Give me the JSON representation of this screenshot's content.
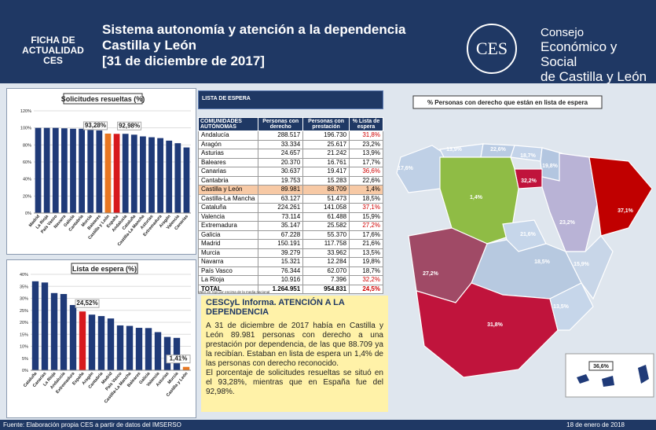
{
  "header": {
    "badge": [
      "FICHA DE",
      "ACTUALIDAD",
      "CES"
    ],
    "title": [
      "Sistema autonomía y atención a la dependencia",
      "Castilla y León",
      "[31 de diciembre de 2017]"
    ],
    "logo": "CES",
    "org": [
      "Consejo",
      "Económico y Social",
      "de Castilla y León"
    ]
  },
  "chart_data": [
    {
      "type": "bar",
      "title": "Solicitudes resueltas (%)",
      "categories": [
        "Madrid",
        "La Rioja",
        "País Vasco",
        "Navarra",
        "Galicia",
        "Cantabria",
        "Murcia",
        "Baleares",
        "Castilla y León",
        "España",
        "Andalucía",
        "Cataluña",
        "Castilla-La Mancha",
        "Asturias",
        "Extremadura",
        "Aragón",
        "Valencia",
        "Canarias"
      ],
      "values": [
        100,
        100,
        100,
        99.5,
        99,
        99,
        98.5,
        97,
        93.28,
        92.98,
        93,
        92,
        90,
        89,
        88,
        85,
        82,
        77
      ],
      "colors": [
        "#1f3a78",
        "#1f3a78",
        "#1f3a78",
        "#1f3a78",
        "#1f3a78",
        "#1f3a78",
        "#1f3a78",
        "#1f3a78",
        "#e87722",
        "#d7191c",
        "#1f3a78",
        "#1f3a78",
        "#1f3a78",
        "#1f3a78",
        "#1f3a78",
        "#1f3a78",
        "#1f3a78",
        "#1f3a78"
      ],
      "annotations": [
        "93,28%",
        "92,98%"
      ],
      "ylim": [
        0,
        120
      ],
      "yticks": [
        {
          "value": 0,
          "label": "0%"
        },
        {
          "value": 20,
          "label": "20%"
        },
        {
          "value": 40,
          "label": "40%"
        },
        {
          "value": 60,
          "label": "60%"
        },
        {
          "value": 80,
          "label": "80%"
        },
        {
          "value": 100,
          "label": "100%"
        },
        {
          "value": 120,
          "label": "120%"
        }
      ]
    },
    {
      "type": "bar",
      "title": "Lista de espera (%)",
      "categories": [
        "Cataluña",
        "Canarias",
        "La Rioja",
        "Andalucía",
        "Extremadura",
        "España",
        "Aragón",
        "Cantabria",
        "Madrid",
        "País Vasco",
        "Castilla-La Mancha",
        "Baleares",
        "Galicia",
        "Valencia",
        "Asturias",
        "Murcia",
        "Castilla y León"
      ],
      "values": [
        37.1,
        36.6,
        32.2,
        31.8,
        27.2,
        24.52,
        23.2,
        22.6,
        21.6,
        18.7,
        18.5,
        17.7,
        17.6,
        15.9,
        13.9,
        13.5,
        1.41
      ],
      "colors": [
        "#1f3a78",
        "#1f3a78",
        "#1f3a78",
        "#1f3a78",
        "#1f3a78",
        "#d7191c",
        "#1f3a78",
        "#1f3a78",
        "#1f3a78",
        "#1f3a78",
        "#1f3a78",
        "#1f3a78",
        "#1f3a78",
        "#1f3a78",
        "#1f3a78",
        "#1f3a78",
        "#e87722"
      ],
      "annotations": [
        "24,52%",
        "1,41%"
      ],
      "ylim": [
        0,
        40
      ],
      "yticks": [
        {
          "value": 0,
          "label": "0%"
        },
        {
          "value": 5,
          "label": "5%"
        },
        {
          "value": 10,
          "label": "10%"
        },
        {
          "value": 15,
          "label": "15%"
        },
        {
          "value": 20,
          "label": "20%"
        },
        {
          "value": 25,
          "label": "25%"
        },
        {
          "value": 30,
          "label": "30%"
        },
        {
          "value": 35,
          "label": "35%"
        },
        {
          "value": 40,
          "label": "40%"
        }
      ]
    }
  ],
  "table": {
    "caption": "LISTA DE ESPERA",
    "columns": [
      "COMUNIDADES AUTÓNOMAS",
      "Personas con derecho",
      "Personas con prestación",
      "% Lista de espera"
    ],
    "rows": [
      [
        "Andalucía",
        "288.517",
        "196.730",
        "31,8%"
      ],
      [
        "Aragón",
        "33.334",
        "25.617",
        "23,2%"
      ],
      [
        "Asturias",
        "24.657",
        "21.242",
        "13,9%"
      ],
      [
        "Baleares",
        "20.370",
        "16.761",
        "17,7%"
      ],
      [
        "Canarias",
        "30.637",
        "19.417",
        "36,6%"
      ],
      [
        "Cantabria",
        "19.753",
        "15.283",
        "22,6%"
      ],
      [
        "Castilla y León",
        "89.981",
        "88.709",
        "1,4%"
      ],
      [
        "Castilla-La Mancha",
        "63.127",
        "51.473",
        "18,5%"
      ],
      [
        "Cataluña",
        "224.261",
        "141.058",
        "37,1%"
      ],
      [
        "Valencia",
        "73.114",
        "61.488",
        "15,9%"
      ],
      [
        "Extremadura",
        "35.147",
        "25.582",
        "27,2%"
      ],
      [
        "Galicia",
        "67.228",
        "55.370",
        "17,6%"
      ],
      [
        "Madrid",
        "150.191",
        "117.758",
        "21,6%"
      ],
      [
        "Murcia",
        "39.279",
        "33.962",
        "13,5%"
      ],
      [
        "Navarra",
        "15.321",
        "12.284",
        "19,8%"
      ],
      [
        "País Vasco",
        "76.344",
        "62.070",
        "18,7%"
      ],
      [
        "La Rioja",
        "10.916",
        "7.396",
        "32,2%"
      ],
      [
        "TOTAL",
        "1.264.951",
        "954.831",
        "24,5%"
      ]
    ],
    "note": "Valor en rojo por encima de la media nacional"
  },
  "info": {
    "title": "CESCyL Informa. ATENCIÓN A LA DEPENDENCIA",
    "paragraphs": [
      "A 31 de diciembre de 2017 había en Castilla y León 89.981 personas con derecho a una prestación por dependencia, de las que 88.709 ya la recibían. Estaban en lista de espera un 1,4% de las personas con derecho reconocido.",
      "El porcentaje de solicitudes resueltas se situó en el 93,28%, mientras que en España fue del 92,98%."
    ]
  },
  "map": {
    "title": "% Personas con derecho que están en lista de espera",
    "labels": [
      "17,6%",
      "13,9%",
      "22,6%",
      "18,7%",
      "19,8%",
      "32,2%",
      "1,4%",
      "23,2%",
      "37,1%",
      "21,6%",
      "18,5%",
      "15,9%",
      "27,2%",
      "31,8%",
      "13,5%",
      "36,6%"
    ]
  },
  "footer": {
    "source": "Fuente: Elaboración propia CES a partir de datos del IMSERSO",
    "date": "18 de enero de 2018"
  }
}
